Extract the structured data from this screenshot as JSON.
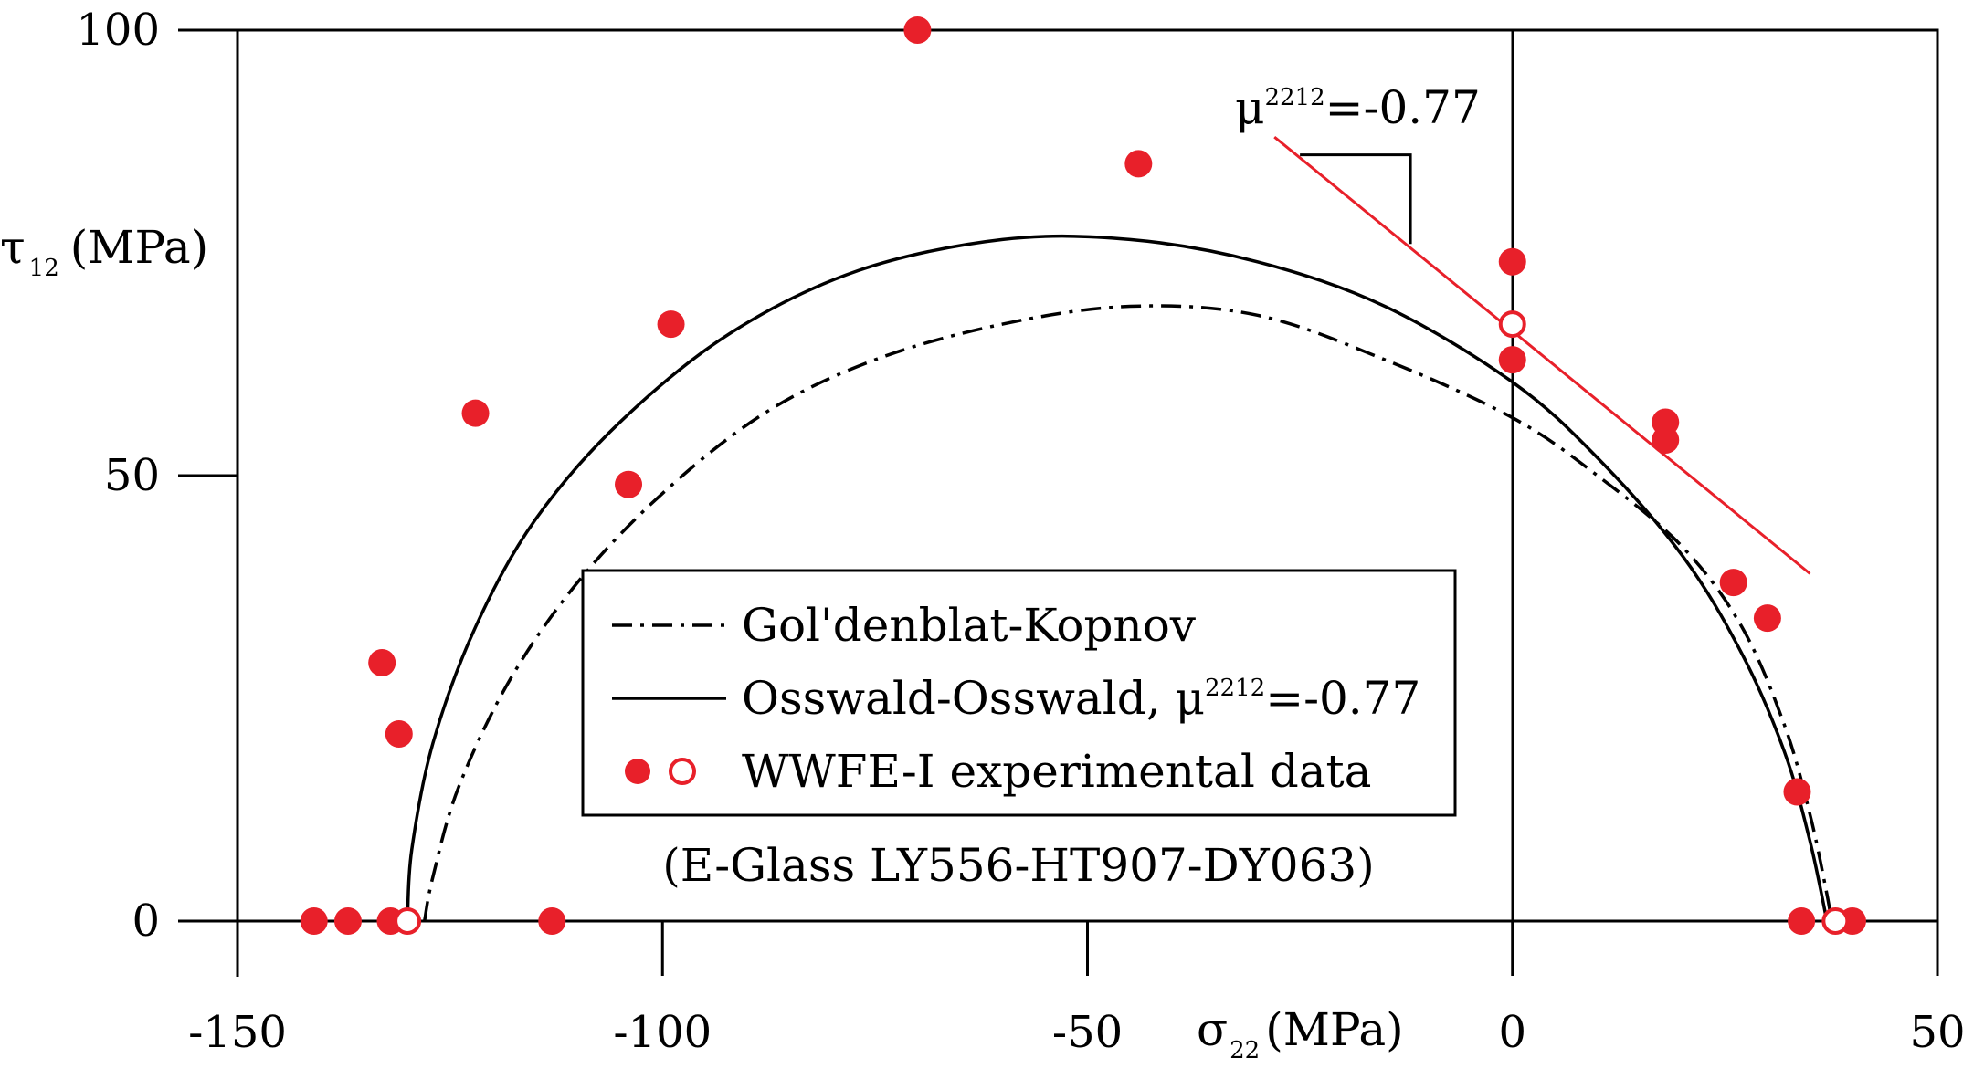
{
  "chart_data": {
    "type": "scatter",
    "title": "",
    "xlabel": {
      "main": "σ",
      "sub": "22",
      "unit": "(MPa)"
    },
    "ylabel": {
      "main": "τ",
      "sub": "12",
      "unit": "(MPa)"
    },
    "xlim": [
      -150,
      50
    ],
    "ylim": [
      0,
      100
    ],
    "x_ticks": [
      -150,
      -100,
      -50,
      0,
      50
    ],
    "y_ticks": [
      0,
      50,
      100
    ],
    "x_tick_labels": [
      "-150",
      "-100",
      "-50",
      "0",
      "50"
    ],
    "y_tick_labels": [
      "0",
      "50",
      "100"
    ],
    "grid": false,
    "legend_position": "center",
    "colors": {
      "data": "#e8202a",
      "slope_line": "#e8202a",
      "curves": "#000000"
    },
    "series": [
      {
        "name": "Gol'denblat-Kopnov",
        "style": "dashdot",
        "points": [
          [
            -128,
            0
          ],
          [
            -127,
            5
          ],
          [
            -124,
            15
          ],
          [
            -118,
            27
          ],
          [
            -110,
            38
          ],
          [
            -100,
            48
          ],
          [
            -88,
            57
          ],
          [
            -75,
            63
          ],
          [
            -60,
            67
          ],
          [
            -45,
            69
          ],
          [
            -30,
            68
          ],
          [
            -15,
            63
          ],
          [
            0,
            56.5
          ],
          [
            10,
            50
          ],
          [
            20,
            42
          ],
          [
            27,
            33
          ],
          [
            32,
            22
          ],
          [
            35,
            12
          ],
          [
            37,
            3
          ],
          [
            37.5,
            0
          ]
        ]
      },
      {
        "name": "Osswald-Osswald, μ2212=-0.77",
        "style": "solid",
        "points": [
          [
            -130,
            0
          ],
          [
            -129.5,
            8
          ],
          [
            -127,
            20
          ],
          [
            -122,
            33
          ],
          [
            -115,
            45
          ],
          [
            -105,
            56
          ],
          [
            -92,
            66
          ],
          [
            -77,
            73
          ],
          [
            -60,
            76.5
          ],
          [
            -45,
            76.5
          ],
          [
            -30,
            74
          ],
          [
            -15,
            69
          ],
          [
            0,
            60.5
          ],
          [
            10,
            52
          ],
          [
            20,
            41
          ],
          [
            27,
            30
          ],
          [
            32,
            19
          ],
          [
            35,
            9
          ],
          [
            37,
            0
          ]
        ]
      },
      {
        "name": "WWFE-I experimental data",
        "marker": "filled",
        "points": [
          [
            -141,
            0
          ],
          [
            -137,
            0
          ],
          [
            -132,
            0
          ],
          [
            -113,
            0
          ],
          [
            34,
            0
          ],
          [
            40,
            0
          ],
          [
            -133,
            29
          ],
          [
            -131,
            21
          ],
          [
            -122,
            57
          ],
          [
            -104,
            49
          ],
          [
            -99,
            67
          ],
          [
            -70,
            100
          ],
          [
            -44,
            85
          ],
          [
            0,
            74
          ],
          [
            0,
            63
          ],
          [
            18,
            56
          ],
          [
            18,
            54
          ],
          [
            26,
            38
          ],
          [
            30,
            34
          ],
          [
            33.5,
            14.5
          ]
        ]
      },
      {
        "name": "WWFE-I experimental data (open)",
        "marker": "open",
        "points": [
          [
            -130,
            0
          ],
          [
            0,
            67
          ],
          [
            38,
            0
          ]
        ]
      }
    ],
    "slope_line": {
      "label": {
        "main": "μ",
        "sup": "2212",
        "value": "=-0.77"
      },
      "points": [
        [
          -28,
          88
        ],
        [
          35,
          39
        ]
      ]
    },
    "slope_triangle": {
      "points": [
        [
          -25,
          86
        ],
        [
          -12,
          86
        ],
        [
          -12,
          76
        ]
      ]
    },
    "legend": {
      "entries": [
        {
          "label": "Gol'denblat-Kopnov",
          "style": "dashdot"
        },
        {
          "label_main": "Osswald-Osswald, μ",
          "label_sup": "2212",
          "label_tail": "=-0.77",
          "style": "solid"
        },
        {
          "label": "WWFE-I experimental data",
          "style": "markers"
        }
      ]
    },
    "annotation": "(E-Glass LY556-HT907-DY063)"
  }
}
